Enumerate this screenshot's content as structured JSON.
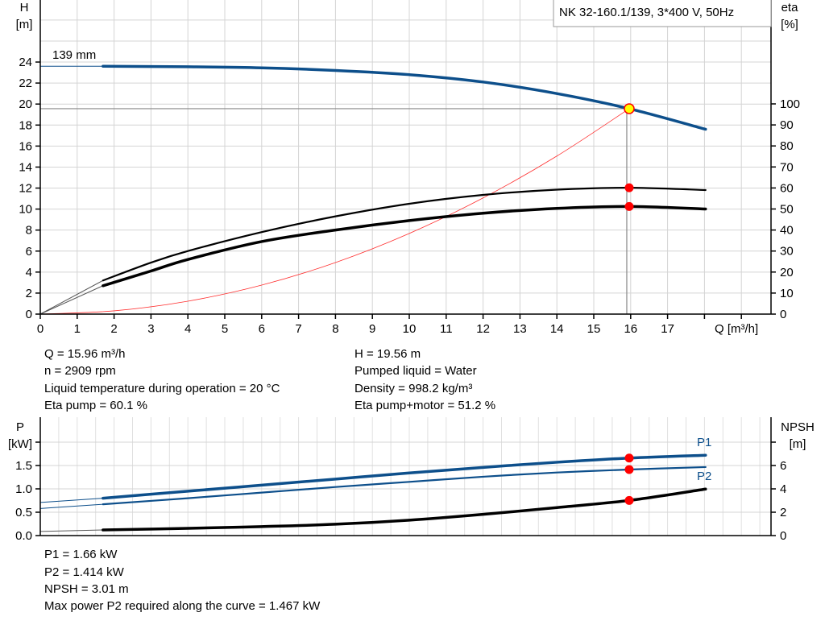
{
  "chart_data": [
    {
      "type": "line",
      "title": "NK 32-160.1/139, 3*400 V, 50Hz",
      "xlabel": "Q [m³/h]",
      "ylabel_left": [
        "H",
        "[m]"
      ],
      "ylabel_right": [
        "eta",
        "[%]"
      ],
      "xlim": [
        0,
        19
      ],
      "ylim_left": [
        0,
        28
      ],
      "ylim_right": [
        0,
        100
      ],
      "x_ticks": [
        "0",
        "1",
        "2",
        "3",
        "4",
        "5",
        "6",
        "7",
        "8",
        "9",
        "10",
        "11",
        "12",
        "13",
        "14",
        "15",
        "16",
        "17"
      ],
      "y_ticks_left": [
        "0",
        "2",
        "4",
        "6",
        "8",
        "10",
        "12",
        "14",
        "16",
        "18",
        "20",
        "22",
        "24"
      ],
      "y_ticks_right": [
        "0",
        "10",
        "20",
        "30",
        "40",
        "50",
        "60",
        "70",
        "80",
        "90",
        "100"
      ],
      "grid": true,
      "curve_label": "139 mm",
      "series": [
        {
          "key": "H",
          "axis": "left",
          "color": "#0d4f8b",
          "x": [
            1.7,
            4,
            6,
            8,
            10,
            12,
            14,
            15.96,
            18.03
          ],
          "y": [
            23.6,
            23.55,
            23.45,
            23.2,
            22.8,
            22.1,
            21.0,
            19.56,
            17.6
          ],
          "extension": {
            "x": 0,
            "y": 23.6
          }
        },
        {
          "key": "eta_pump",
          "axis": "right",
          "color": "#000000",
          "x": [
            1.7,
            3,
            4,
            6,
            8,
            10,
            12,
            14,
            15.96,
            18.03
          ],
          "y": [
            16,
            24.5,
            30,
            39,
            46.5,
            52.5,
            56.7,
            59.2,
            60.1,
            59
          ],
          "extension": {
            "x": 0,
            "y": 0
          }
        },
        {
          "key": "eta_pump_motor",
          "axis": "right",
          "color": "#000000",
          "x": [
            1.7,
            3,
            4,
            6,
            8,
            10,
            12,
            14,
            15.96,
            18.03
          ],
          "y": [
            13.5,
            20.5,
            26,
            34.5,
            40,
            44.5,
            48,
            50.3,
            51.2,
            50
          ],
          "extension": {
            "x": 0,
            "y": 0
          }
        },
        {
          "key": "system_curve",
          "axis": "left",
          "color": "#ff3030",
          "x": [
            0,
            2,
            4,
            6,
            8,
            10,
            12,
            14,
            15.96
          ],
          "y": [
            0,
            0.31,
            1.23,
            2.76,
            4.91,
            7.68,
            11.06,
            15.05,
            19.56
          ]
        }
      ],
      "operating_point": {
        "Q": 15.96,
        "H": 19.56,
        "eta_pump": 60.1,
        "eta_pump_motor": 51.2
      }
    },
    {
      "type": "line",
      "ylabel_left": [
        "P",
        "[kW]"
      ],
      "ylabel_right": [
        "NPSH",
        "[m]"
      ],
      "xlim": [
        0,
        19
      ],
      "ylim_left": [
        0,
        2.0
      ],
      "ylim_right": [
        0,
        8
      ],
      "y_ticks_left": [
        "0.0",
        "0.5",
        "1.0",
        "1.5"
      ],
      "y_ticks_right": [
        "0",
        "2",
        "4",
        "6"
      ],
      "grid": true,
      "series": [
        {
          "name": "P1",
          "axis": "left",
          "color": "#0d4f8b",
          "x": [
            1.7,
            4,
            6,
            8,
            10,
            12,
            14,
            15.96,
            18.03
          ],
          "y": [
            0.8,
            0.95,
            1.08,
            1.21,
            1.34,
            1.46,
            1.57,
            1.66,
            1.72
          ],
          "extension": {
            "x": 0,
            "y": 0.71
          }
        },
        {
          "name": "P2",
          "axis": "left",
          "color": "#0d4f8b",
          "x": [
            1.7,
            4,
            6,
            8,
            10,
            12,
            14,
            15.96,
            18.03
          ],
          "y": [
            0.67,
            0.8,
            0.92,
            1.04,
            1.15,
            1.26,
            1.35,
            1.414,
            1.467
          ],
          "extension": {
            "x": 0,
            "y": 0.58
          }
        },
        {
          "key": "NPSH",
          "axis": "right",
          "color": "#000000",
          "x": [
            1.7,
            4,
            6,
            8,
            10,
            12,
            14,
            15.96,
            18.03
          ],
          "y": [
            0.48,
            0.62,
            0.77,
            0.97,
            1.32,
            1.82,
            2.4,
            3.01,
            3.98
          ],
          "extension": {
            "x": 0,
            "y": 0.35
          }
        }
      ],
      "operating_point": {
        "Q": 15.96,
        "P1": 1.66,
        "P2": 1.414,
        "NPSH": 3.01
      }
    }
  ],
  "info_top": {
    "q": "Q = 15.96 m³/h",
    "n": "n = 2909 rpm",
    "temp": "Liquid temperature during operation = 20 °C",
    "eta_pump": "Eta pump = 60.1 %",
    "h": "H = 19.56 m",
    "liquid": "Pumped liquid = Water",
    "density": "Density = 998.2 kg/m³",
    "eta_pm": "Eta pump+motor = 51.2 %"
  },
  "info_bottom": {
    "p1": "P1 = 1.66 kW",
    "p2": "P2 = 1.414 kW",
    "npsh": "NPSH = 3.01 m",
    "max": "Max power P2 required along the curve = 1.467 kW"
  },
  "colors": {
    "curve_blue": "#0d4f8b",
    "marker_red": "#ff0000",
    "marker_yellow": "#ffff00",
    "grid": "#d4d4d4"
  }
}
